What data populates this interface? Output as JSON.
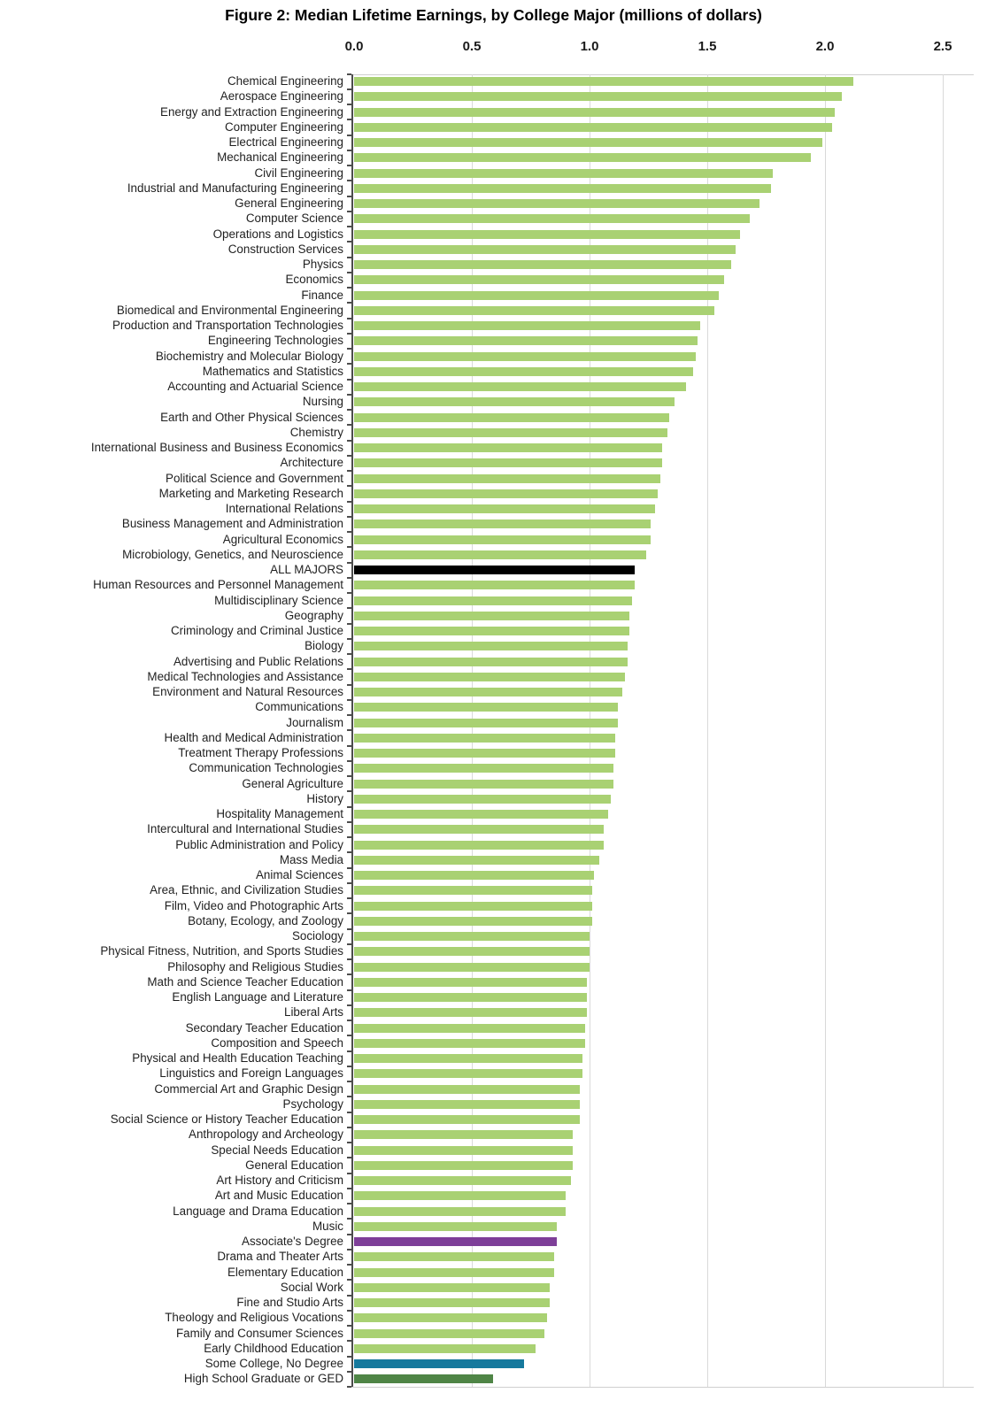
{
  "chart_data": {
    "type": "bar",
    "orientation": "horizontal",
    "title": "Figure 2: Median Lifetime Earnings, by College Major (millions of dollars)",
    "unit": "millions of dollars",
    "x_axis": {
      "position": "top",
      "min": 0,
      "max": 2.5,
      "tick_interval": 0.5,
      "ticks": [
        {
          "value": 0.0,
          "label": "0.0"
        },
        {
          "value": 0.5,
          "label": "0.5"
        },
        {
          "value": 1.0,
          "label": "1.0"
        },
        {
          "value": 1.5,
          "label": "1.5"
        },
        {
          "value": 2.0,
          "label": "2.0"
        },
        {
          "value": 2.5,
          "label": "2.5"
        }
      ]
    },
    "grid": true,
    "default_bar_color": "#a9d173",
    "highlight_colors": {
      "ALL MAJORS": "#000000",
      "Associate's Degree": "#7e3f98",
      "Some College, No Degree": "#16799d",
      "High School Graduate or GED": "#4f8546"
    },
    "series": [
      {
        "label": "Chemical Engineering",
        "value": 2.12
      },
      {
        "label": "Aerospace Engineering",
        "value": 2.07
      },
      {
        "label": "Energy and Extraction Engineering",
        "value": 2.04
      },
      {
        "label": "Computer Engineering",
        "value": 2.03
      },
      {
        "label": "Electrical Engineering",
        "value": 1.99
      },
      {
        "label": "Mechanical Engineering",
        "value": 1.94
      },
      {
        "label": "Civil Engineering",
        "value": 1.78
      },
      {
        "label": "Industrial and Manufacturing Engineering",
        "value": 1.77
      },
      {
        "label": "General Engineering",
        "value": 1.72
      },
      {
        "label": "Computer Science",
        "value": 1.68
      },
      {
        "label": "Operations and Logistics",
        "value": 1.64
      },
      {
        "label": "Construction Services",
        "value": 1.62
      },
      {
        "label": "Physics",
        "value": 1.6
      },
      {
        "label": "Economics",
        "value": 1.57
      },
      {
        "label": "Finance",
        "value": 1.55
      },
      {
        "label": "Biomedical and Environmental Engineering",
        "value": 1.53
      },
      {
        "label": "Production and Transportation Technologies",
        "value": 1.47
      },
      {
        "label": "Engineering Technologies",
        "value": 1.46
      },
      {
        "label": "Biochemistry and Molecular Biology",
        "value": 1.45
      },
      {
        "label": "Mathematics and Statistics",
        "value": 1.44
      },
      {
        "label": "Accounting and Actuarial Science",
        "value": 1.41
      },
      {
        "label": "Nursing",
        "value": 1.36
      },
      {
        "label": "Earth and Other Physical Sciences",
        "value": 1.34
      },
      {
        "label": "Chemistry",
        "value": 1.33
      },
      {
        "label": "International Business and Business Economics",
        "value": 1.31
      },
      {
        "label": "Architecture",
        "value": 1.31
      },
      {
        "label": "Political Science and Government",
        "value": 1.3
      },
      {
        "label": "Marketing and Marketing Research",
        "value": 1.29
      },
      {
        "label": "International Relations",
        "value": 1.28
      },
      {
        "label": "Business Management and Administration",
        "value": 1.26
      },
      {
        "label": "Agricultural Economics",
        "value": 1.26
      },
      {
        "label": "Microbiology, Genetics, and Neuroscience",
        "value": 1.24
      },
      {
        "label": "ALL MAJORS",
        "value": 1.19
      },
      {
        "label": "Human Resources and Personnel Management",
        "value": 1.19
      },
      {
        "label": "Multidisciplinary Science",
        "value": 1.18
      },
      {
        "label": "Geography",
        "value": 1.17
      },
      {
        "label": "Criminology and Criminal Justice",
        "value": 1.17
      },
      {
        "label": "Biology",
        "value": 1.16
      },
      {
        "label": "Advertising and Public Relations",
        "value": 1.16
      },
      {
        "label": "Medical Technologies and Assistance",
        "value": 1.15
      },
      {
        "label": "Environment and Natural Resources",
        "value": 1.14
      },
      {
        "label": "Communications",
        "value": 1.12
      },
      {
        "label": "Journalism",
        "value": 1.12
      },
      {
        "label": "Health and Medical Administration",
        "value": 1.11
      },
      {
        "label": "Treatment Therapy Professions",
        "value": 1.11
      },
      {
        "label": "Communication Technologies",
        "value": 1.1
      },
      {
        "label": "General Agriculture",
        "value": 1.1
      },
      {
        "label": "History",
        "value": 1.09
      },
      {
        "label": "Hospitality Management",
        "value": 1.08
      },
      {
        "label": "Intercultural and International Studies",
        "value": 1.06
      },
      {
        "label": "Public Administration and Policy",
        "value": 1.06
      },
      {
        "label": "Mass Media",
        "value": 1.04
      },
      {
        "label": "Animal Sciences",
        "value": 1.02
      },
      {
        "label": "Area, Ethnic, and Civilization Studies",
        "value": 1.01
      },
      {
        "label": "Film, Video and Photographic Arts",
        "value": 1.01
      },
      {
        "label": "Botany, Ecology, and Zoology",
        "value": 1.01
      },
      {
        "label": "Sociology",
        "value": 1.0
      },
      {
        "label": "Physical Fitness, Nutrition, and Sports Studies",
        "value": 1.0
      },
      {
        "label": "Philosophy and Religious Studies",
        "value": 1.0
      },
      {
        "label": "Math and Science Teacher Education",
        "value": 0.99
      },
      {
        "label": "English Language and Literature",
        "value": 0.99
      },
      {
        "label": "Liberal Arts",
        "value": 0.99
      },
      {
        "label": "Secondary Teacher Education",
        "value": 0.98
      },
      {
        "label": "Composition and Speech",
        "value": 0.98
      },
      {
        "label": "Physical and Health Education Teaching",
        "value": 0.97
      },
      {
        "label": "Linguistics and Foreign Languages",
        "value": 0.97
      },
      {
        "label": "Commercial Art and Graphic Design",
        "value": 0.96
      },
      {
        "label": "Psychology",
        "value": 0.96
      },
      {
        "label": "Social Science or History Teacher Education",
        "value": 0.96
      },
      {
        "label": "Anthropology and Archeology",
        "value": 0.93
      },
      {
        "label": "Special Needs Education",
        "value": 0.93
      },
      {
        "label": "General Education",
        "value": 0.93
      },
      {
        "label": "Art History and Criticism",
        "value": 0.92
      },
      {
        "label": "Art and Music Education",
        "value": 0.9
      },
      {
        "label": "Language and Drama Education",
        "value": 0.9
      },
      {
        "label": "Music",
        "value": 0.86
      },
      {
        "label": "Associate's Degree",
        "value": 0.86
      },
      {
        "label": "Drama and Theater Arts",
        "value": 0.85
      },
      {
        "label": "Elementary Education",
        "value": 0.85
      },
      {
        "label": "Social Work",
        "value": 0.83
      },
      {
        "label": "Fine and Studio Arts",
        "value": 0.83
      },
      {
        "label": "Theology and Religious Vocations",
        "value": 0.82
      },
      {
        "label": "Family and Consumer Sciences",
        "value": 0.81
      },
      {
        "label": "Early Childhood Education",
        "value": 0.77
      },
      {
        "label": "Some College, No Degree",
        "value": 0.72
      },
      {
        "label": "High School Graduate or GED",
        "value": 0.59
      }
    ]
  }
}
